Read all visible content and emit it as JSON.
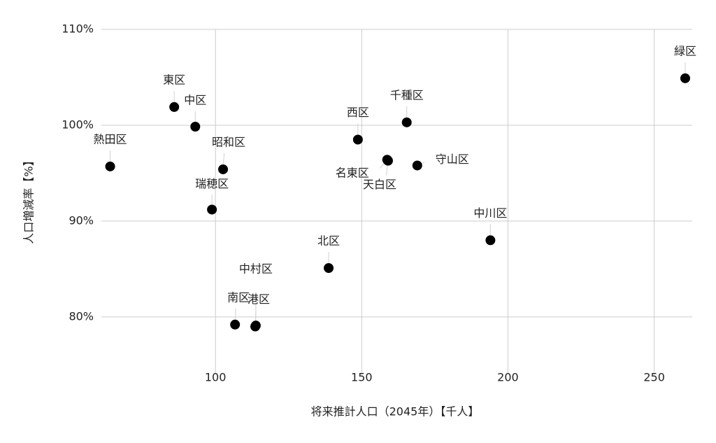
{
  "chart_data": {
    "type": "scatter",
    "x_label": "将来推計人口（2045年）【千人】",
    "y_label": "人口増減率【%】",
    "color": "#000000",
    "grid": true,
    "xlim": [
      61,
      263
    ],
    "ylim": [
      74,
      110
    ],
    "xticks": [
      100,
      150,
      200,
      250
    ],
    "yticks": [
      {
        "value": 80,
        "label": "80%"
      },
      {
        "value": 90,
        "label": "90%"
      },
      {
        "value": 100,
        "label": "100%"
      },
      {
        "value": 110,
        "label": "110%"
      }
    ],
    "labels": [
      "熱田区",
      "東区",
      "中区",
      "昭和区",
      "瑞穂区",
      "中村区",
      "南区",
      "港区",
      "北区",
      "西区",
      "名東区",
      "天白区",
      "千種区",
      "守山区",
      "中川区",
      "緑区"
    ],
    "x": [
      64.0,
      85.9,
      93.1,
      102.6,
      98.8,
      113.8,
      106.7,
      113.6,
      138.7,
      148.7,
      158.7,
      159.0,
      165.4,
      169.0,
      194.0,
      260.6
    ],
    "y": [
      95.7,
      101.9,
      99.85,
      95.4,
      91.2,
      79.1,
      79.2,
      79.0,
      85.1,
      98.5,
      96.4,
      96.3,
      100.3,
      95.8,
      88.0,
      104.9
    ]
  }
}
